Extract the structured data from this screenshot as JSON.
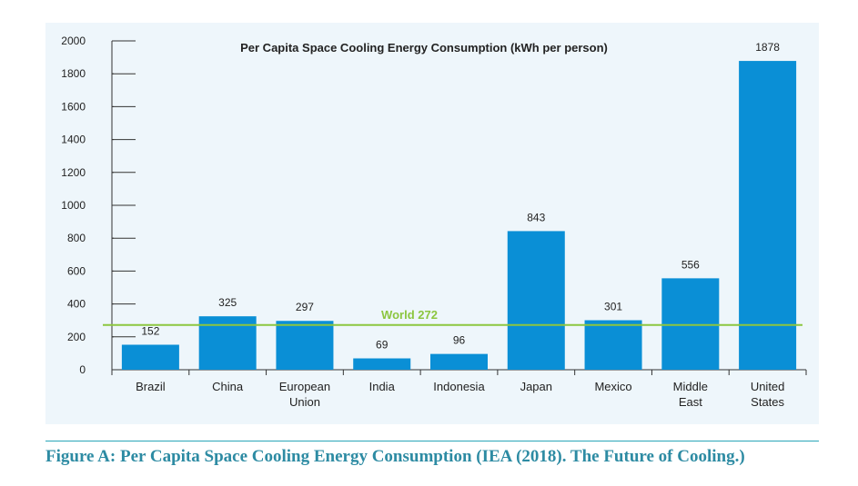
{
  "chart_data": {
    "type": "bar",
    "title": "Per Capita Space Cooling Energy Consumption (kWh per person)",
    "categories": [
      [
        "Brazil"
      ],
      [
        "China"
      ],
      [
        "European",
        "Union"
      ],
      [
        "India"
      ],
      [
        "Indonesia"
      ],
      [
        "Japan"
      ],
      [
        "Mexico"
      ],
      [
        "Middle",
        "East"
      ],
      [
        "United",
        "States"
      ]
    ],
    "values": [
      152,
      325,
      297,
      69,
      96,
      843,
      301,
      556,
      1878
    ],
    "data_labels": [
      "152",
      "325",
      "297",
      "69",
      "96",
      "843",
      "301",
      "556",
      "1878"
    ],
    "ylim": [
      0,
      2000
    ],
    "yticks": [
      0,
      200,
      400,
      600,
      800,
      1000,
      1200,
      1400,
      1600,
      1800,
      2000
    ],
    "ytick_labels": [
      "0",
      "200",
      "400",
      "600",
      "800",
      "1000",
      "1200",
      "1400",
      "1600",
      "1800",
      "2000"
    ],
    "reference_line": {
      "label": "World 272",
      "value": 272,
      "color": "#8cc63f"
    },
    "bar_color": "#0a8fd6",
    "grid": false,
    "legend": "none"
  },
  "caption": "Figure A: Per Capita Space Cooling Energy Consumption (IEA (2018). The Future of Cooling.)",
  "colors": {
    "panel_background": "#eef6fb",
    "caption": "#2d8ba3",
    "rule": "#2aa6b8"
  }
}
